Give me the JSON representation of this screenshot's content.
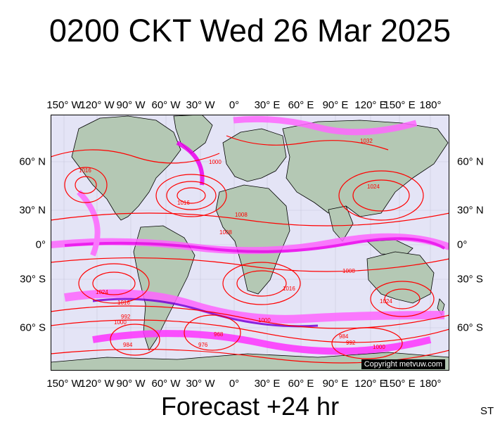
{
  "title": "0200 CKT Wed 26 Mar 2025",
  "footer": "Forecast +24 hr",
  "corner_label": "ST",
  "copyright": "Copyright metvuw.com",
  "longitude_labels": [
    "150° W",
    "120° W",
    "90° W",
    "60° W",
    "30° W",
    "0°",
    "30° E",
    "60° E",
    "90° E",
    "120° E",
    "150° E",
    "180°"
  ],
  "latitude_labels": [
    "60° N",
    "30° N",
    "0°",
    "30° S",
    "60° S"
  ],
  "isobar_labels": [
    "1000",
    "1008",
    "1016",
    "1024",
    "1032",
    "1016",
    "1008",
    "1000",
    "992",
    "984",
    "968",
    "976",
    "1016",
    "1024",
    "1008",
    "1000",
    "1016",
    "1024",
    "1000",
    "992",
    "984"
  ],
  "colors": {
    "ocean": "#e4e4f6",
    "land": "#b4c8b4",
    "isobar": "#ff0000",
    "precip_light": "#ff66ff",
    "precip_mid": "#ee00ee",
    "precip_heavy": "#7a00d8"
  }
}
